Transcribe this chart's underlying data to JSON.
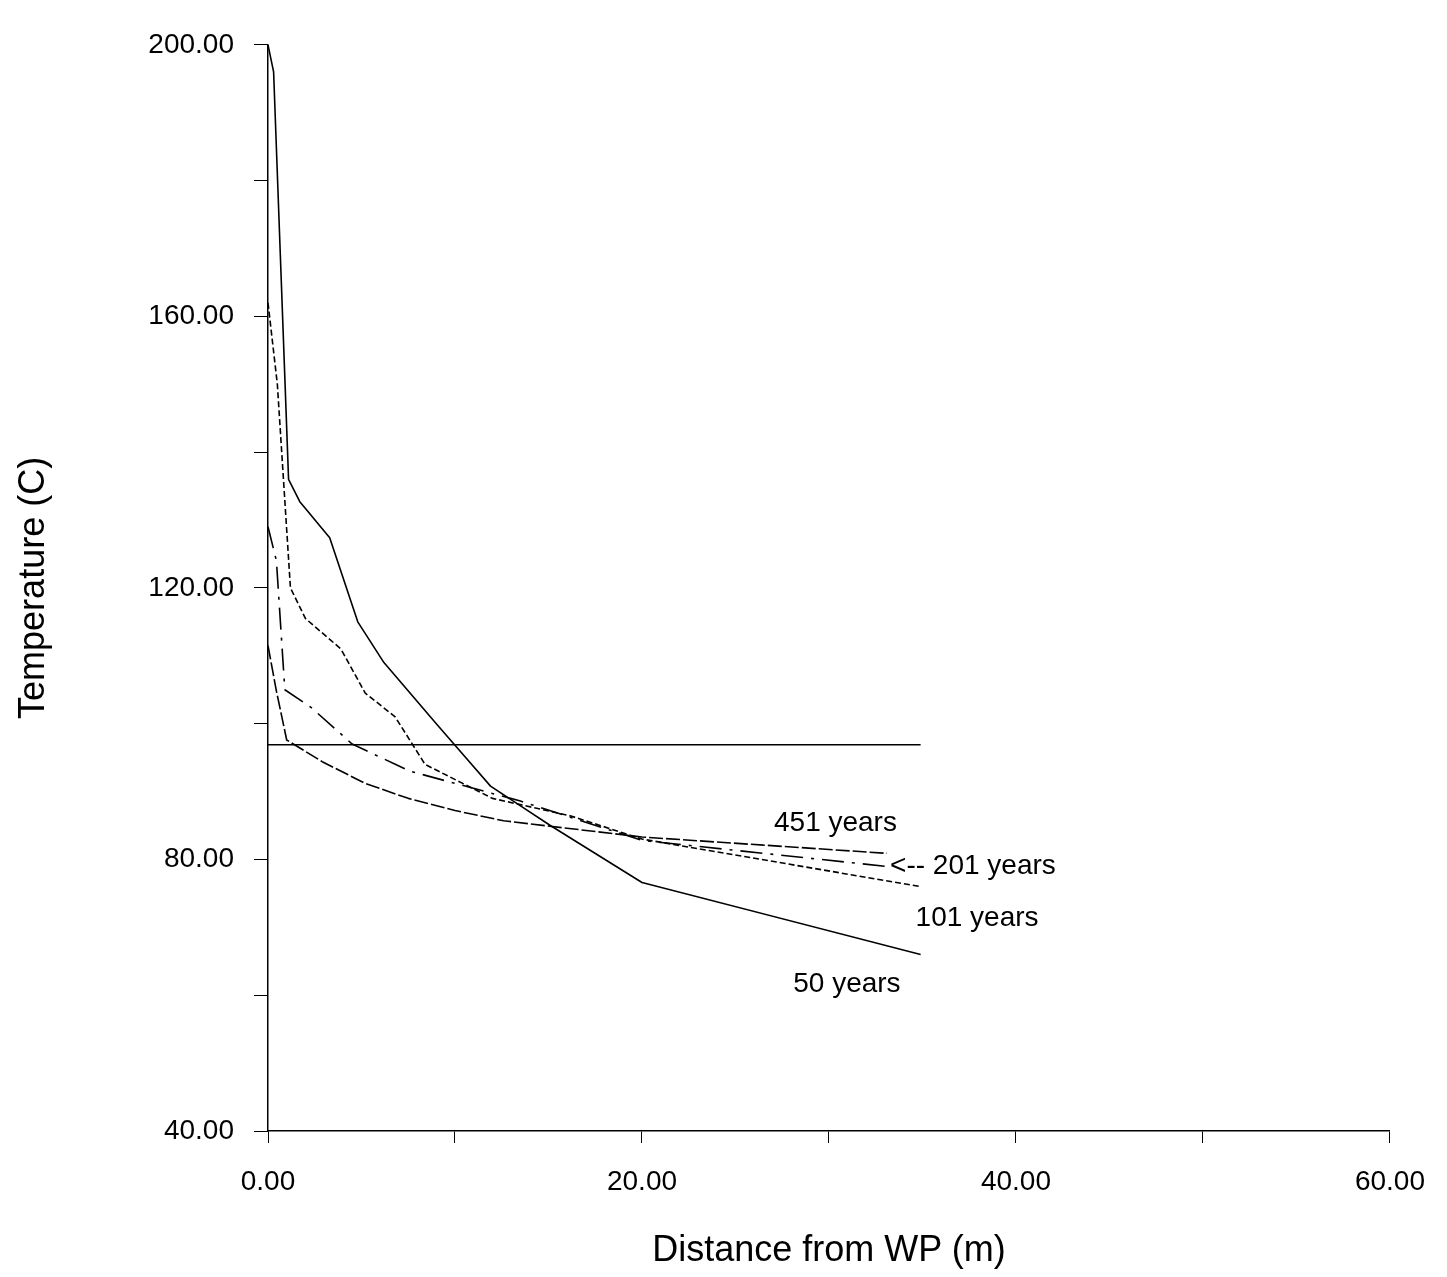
{
  "chart_data": {
    "type": "line",
    "xlabel": "Distance from WP (m)",
    "ylabel": "Temperature (C)",
    "xlim": [
      0,
      60
    ],
    "xticks": [
      {
        "value": 0,
        "label": "0.00"
      },
      {
        "value": 10,
        "label": null
      },
      {
        "value": 20,
        "label": "20.00"
      },
      {
        "value": 30,
        "label": null
      },
      {
        "value": 40,
        "label": "40.00"
      },
      {
        "value": 50,
        "label": null
      },
      {
        "value": 60,
        "label": "60.00"
      }
    ],
    "ylim": [
      40,
      200
    ],
    "yticks": [
      {
        "value": 40,
        "label": "40.00"
      },
      {
        "value": 60,
        "label": null
      },
      {
        "value": 80,
        "label": "80.00"
      },
      {
        "value": 100,
        "label": null
      },
      {
        "value": 120,
        "label": "120.00"
      },
      {
        "value": 140,
        "label": null
      },
      {
        "value": 160,
        "label": "160.00"
      },
      {
        "value": 180,
        "label": null
      },
      {
        "value": 200,
        "label": "200.00"
      }
    ],
    "grid": false,
    "legend": false,
    "marker": "none",
    "series": [
      {
        "name": "50 years",
        "color": "#000000",
        "line_style": "solid",
        "x": [
          0,
          0.3,
          1.1,
          1.7,
          3.3,
          4.8,
          6.2,
          9,
          11.9,
          15.1,
          20,
          34.9
        ],
        "values": [
          200,
          196,
          136,
          132.7,
          127.4,
          115,
          109,
          100,
          90.8,
          85,
          76.6,
          66
        ]
      },
      {
        "name": "101 years",
        "color": "#000000",
        "line_style": "dashed",
        "x": [
          0,
          0.5,
          1.2,
          2,
          3.9,
          5.2,
          6.8,
          8.4,
          12,
          16.2,
          20,
          34.9
        ],
        "values": [
          162,
          150,
          120,
          115.5,
          111,
          104.5,
          101,
          94,
          89,
          86.4,
          83,
          76
        ]
      },
      {
        "name": "<-- 201 years",
        "color": "#000000",
        "line_style": "dotted",
        "x": [
          0,
          0.45,
          0.9,
          2.3,
          4.5,
          7.6,
          13.5,
          20,
          33
        ],
        "values": [
          129,
          124,
          105,
          102.4,
          97,
          93,
          88.6,
          82.8,
          79
        ]
      },
      {
        "name": "451 years",
        "color": "#000000",
        "line_style": "dashed",
        "x": [
          0,
          0.45,
          1,
          2.9,
          5.2,
          7.5,
          10,
          12.6,
          20,
          33.1
        ],
        "values": [
          111.5,
          104.8,
          97.6,
          94.4,
          91.2,
          89,
          87.2,
          85.7,
          83.3,
          80.9
        ]
      },
      {
        "color": "#000000",
        "line_style": "solid",
        "x": [
          0,
          34.9
        ],
        "values": [
          96.9,
          96.9
        ]
      }
    ]
  }
}
